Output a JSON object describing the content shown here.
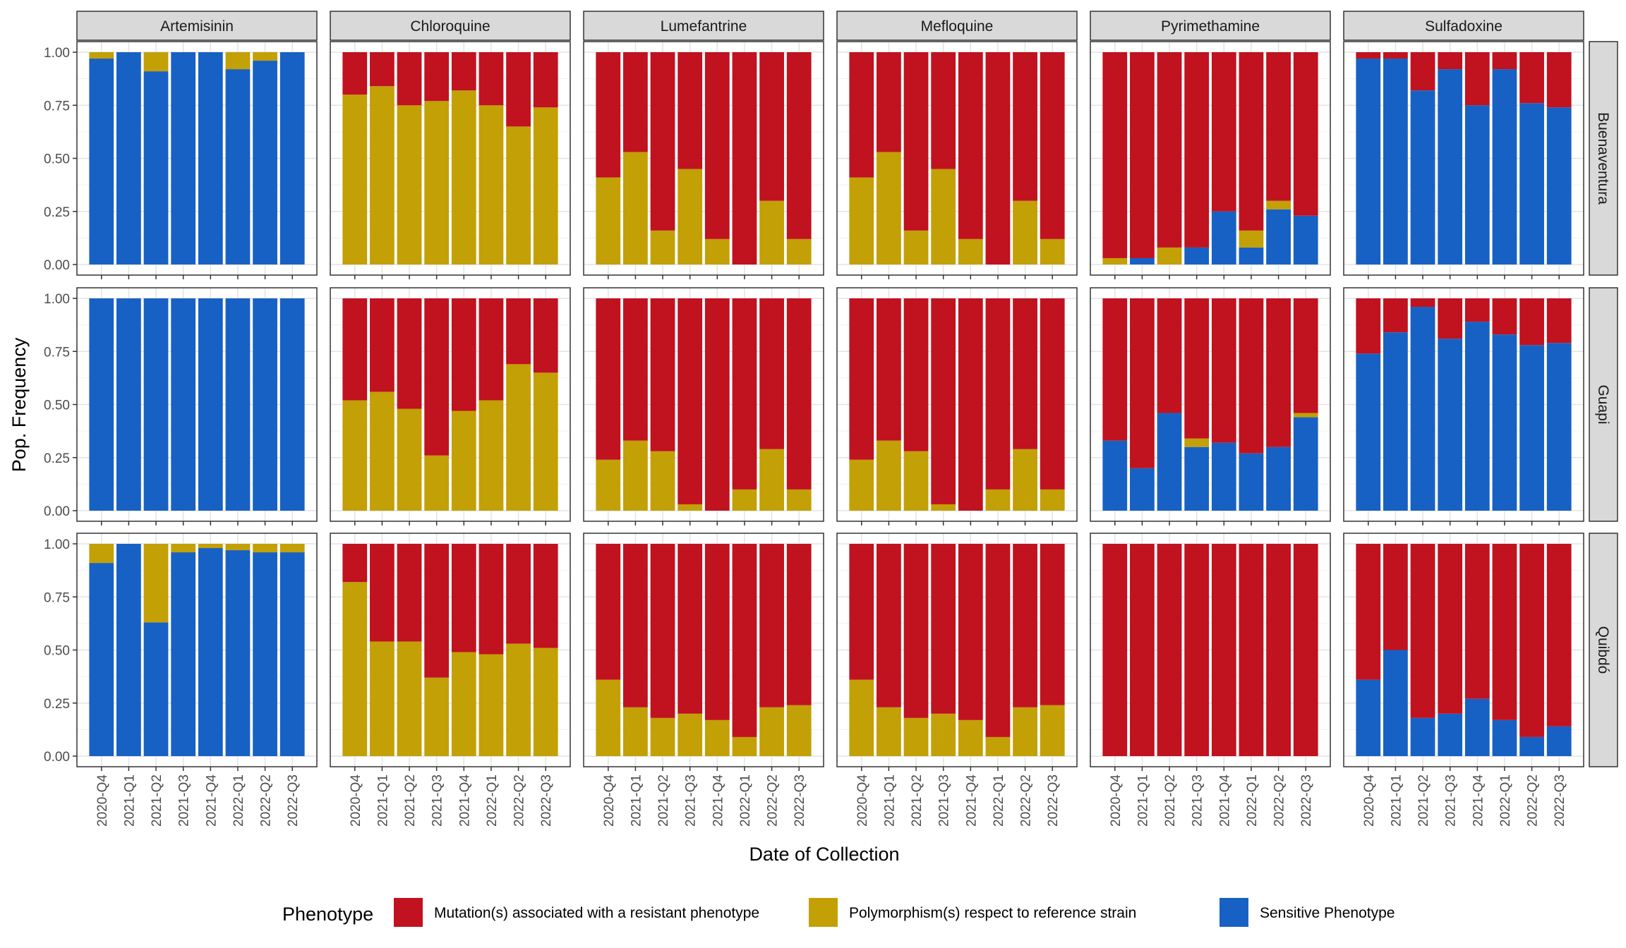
{
  "chart_data": {
    "type": "bar",
    "stacked": true,
    "xlabel": "Date of Collection",
    "ylabel": "Pop. Frequency",
    "ylim": [
      0,
      1
    ],
    "yticks": [
      "0.00",
      "0.25",
      "0.50",
      "0.75",
      "1.00"
    ],
    "grid": true,
    "legend_position": "bottom",
    "legend_title": "Phenotype",
    "categories": [
      "2020-Q4",
      "2021-Q1",
      "2021-Q2",
      "2021-Q3",
      "2021-Q4",
      "2022-Q1",
      "2022-Q2",
      "2022-Q3"
    ],
    "columns": [
      "Artemisinin",
      "Chloroquine",
      "Lumefantrine",
      "Mefloquine",
      "Pyrimethamine",
      "Sulfadoxine"
    ],
    "rows": [
      "Buenaventura",
      "Guapi",
      "Quibdó"
    ],
    "stack_order": [
      "Sensitive Phenotype",
      "Polymorphism(s) respect to reference strain",
      "Mutation(s) associated with a resistant phenotype"
    ],
    "series_colors": {
      "Mutation(s) associated with a resistant phenotype": "#C0121F",
      "Polymorphism(s) respect to reference strain": "#C2A006",
      "Sensitive Phenotype": "#1861C4"
    },
    "legend": [
      {
        "name": "Mutation(s) associated with a resistant phenotype",
        "color": "#C0121F"
      },
      {
        "name": "Polymorphism(s) respect to reference strain",
        "color": "#C2A006"
      },
      {
        "name": "Sensitive Phenotype",
        "color": "#1861C4"
      }
    ],
    "panels": {
      "Buenaventura": {
        "Artemisinin": {
          "sensitive": [
            0.97,
            1.0,
            0.91,
            1.0,
            1.0,
            0.92,
            0.96,
            1.0
          ],
          "polymorphism": [
            0.03,
            0.0,
            0.09,
            0.0,
            0.0,
            0.08,
            0.04,
            0.0
          ]
        },
        "Chloroquine": {
          "sensitive": [
            0,
            0,
            0,
            0,
            0,
            0,
            0,
            0
          ],
          "polymorphism": [
            0.8,
            0.84,
            0.75,
            0.77,
            0.82,
            0.75,
            0.65,
            0.74
          ]
        },
        "Lumefantrine": {
          "sensitive": [
            0,
            0,
            0,
            0,
            0,
            0,
            0,
            0
          ],
          "polymorphism": [
            0.41,
            0.53,
            0.16,
            0.45,
            0.12,
            0.0,
            0.3,
            0.12
          ]
        },
        "Mefloquine": {
          "sensitive": [
            0,
            0,
            0,
            0,
            0,
            0,
            0,
            0
          ],
          "polymorphism": [
            0.41,
            0.53,
            0.16,
            0.45,
            0.12,
            0.0,
            0.3,
            0.12
          ]
        },
        "Pyrimethamine": {
          "sensitive": [
            0.0,
            0.03,
            0.0,
            0.08,
            0.25,
            0.08,
            0.26,
            0.23
          ],
          "polymorphism": [
            0.03,
            0.0,
            0.08,
            0.0,
            0.0,
            0.08,
            0.04,
            0.0
          ]
        },
        "Sulfadoxine": {
          "sensitive": [
            0.97,
            0.97,
            0.82,
            0.92,
            0.75,
            0.92,
            0.76,
            0.74
          ],
          "polymorphism": [
            0,
            0,
            0,
            0,
            0,
            0,
            0,
            0
          ]
        }
      },
      "Guapi": {
        "Artemisinin": {
          "sensitive": [
            1,
            1,
            1,
            1,
            1,
            1,
            1,
            1
          ],
          "polymorphism": [
            0,
            0,
            0,
            0,
            0,
            0,
            0,
            0
          ]
        },
        "Chloroquine": {
          "sensitive": [
            0,
            0,
            0,
            0,
            0,
            0,
            0,
            0
          ],
          "polymorphism": [
            0.52,
            0.56,
            0.48,
            0.26,
            0.47,
            0.52,
            0.69,
            0.65
          ]
        },
        "Lumefantrine": {
          "sensitive": [
            0,
            0,
            0,
            0,
            0,
            0,
            0,
            0
          ],
          "polymorphism": [
            0.24,
            0.33,
            0.28,
            0.03,
            0.0,
            0.1,
            0.29,
            0.1
          ]
        },
        "Mefloquine": {
          "sensitive": [
            0,
            0,
            0,
            0,
            0,
            0,
            0,
            0
          ],
          "polymorphism": [
            0.24,
            0.33,
            0.28,
            0.03,
            0.0,
            0.1,
            0.29,
            0.1
          ]
        },
        "Pyrimethamine": {
          "sensitive": [
            0.33,
            0.2,
            0.46,
            0.3,
            0.32,
            0.27,
            0.3,
            0.44
          ],
          "polymorphism": [
            0.0,
            0.0,
            0.0,
            0.04,
            0.0,
            0.0,
            0.0,
            0.02
          ]
        },
        "Sulfadoxine": {
          "sensitive": [
            0.74,
            0.84,
            0.96,
            0.81,
            0.89,
            0.83,
            0.78,
            0.79
          ],
          "polymorphism": [
            0,
            0,
            0,
            0,
            0,
            0,
            0,
            0
          ]
        }
      },
      "Quibdó": {
        "Artemisinin": {
          "sensitive": [
            0.91,
            1.0,
            0.63,
            0.96,
            0.98,
            0.97,
            0.96,
            0.96
          ],
          "polymorphism": [
            0.09,
            0.0,
            0.37,
            0.04,
            0.02,
            0.03,
            0.04,
            0.04
          ]
        },
        "Chloroquine": {
          "sensitive": [
            0,
            0,
            0,
            0,
            0,
            0,
            0,
            0
          ],
          "polymorphism": [
            0.82,
            0.54,
            0.54,
            0.37,
            0.49,
            0.48,
            0.53,
            0.51
          ]
        },
        "Lumefantrine": {
          "sensitive": [
            0,
            0,
            0,
            0,
            0,
            0,
            0,
            0
          ],
          "polymorphism": [
            0.36,
            0.23,
            0.18,
            0.2,
            0.17,
            0.09,
            0.23,
            0.24
          ]
        },
        "Mefloquine": {
          "sensitive": [
            0,
            0,
            0,
            0,
            0,
            0,
            0,
            0
          ],
          "polymorphism": [
            0.36,
            0.23,
            0.18,
            0.2,
            0.17,
            0.09,
            0.23,
            0.24
          ]
        },
        "Pyrimethamine": {
          "sensitive": [
            0,
            0,
            0,
            0,
            0,
            0,
            0,
            0
          ],
          "polymorphism": [
            0,
            0,
            0,
            0,
            0,
            0,
            0,
            0
          ]
        },
        "Sulfadoxine": {
          "sensitive": [
            0.36,
            0.5,
            0.18,
            0.2,
            0.27,
            0.17,
            0.09,
            0.14
          ],
          "polymorphism": [
            0,
            0,
            0,
            0,
            0,
            0,
            0,
            0
          ]
        }
      }
    }
  }
}
